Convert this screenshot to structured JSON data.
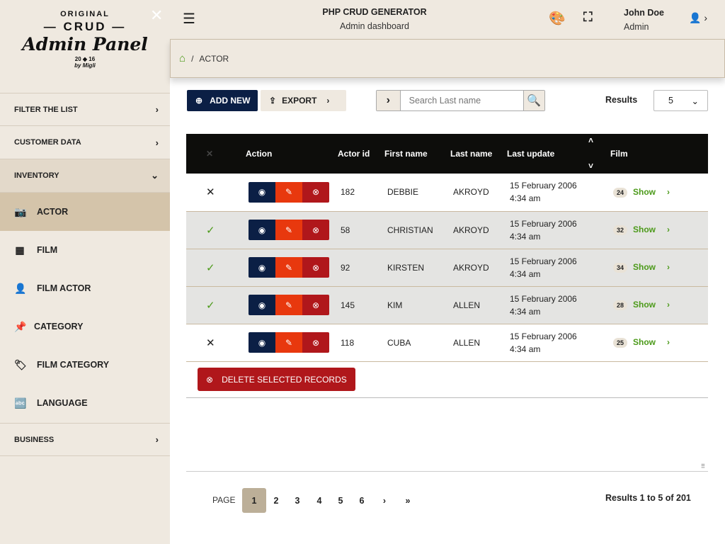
{
  "logo": {
    "line1": "ORIGINAL",
    "line2": "— CRUD —",
    "line3": "Admin Panel",
    "line4": "20 ◆ 16",
    "line5": "by Migli"
  },
  "header": {
    "title": "PHP CRUD GENERATOR",
    "subtitle": "Admin dashboard",
    "user_name": "John Doe",
    "user_role": "Admin"
  },
  "sidebar": {
    "sections": [
      {
        "label": "FILTER THE LIST"
      },
      {
        "label": "CUSTOMER DATA"
      },
      {
        "label": "INVENTORY"
      },
      {
        "label": "BUSINESS"
      }
    ],
    "items": [
      {
        "label": "ACTOR",
        "icon": "camera-icon"
      },
      {
        "label": "FILM",
        "icon": "film-icon"
      },
      {
        "label": "FILM ACTOR",
        "icon": "user-tag-icon"
      },
      {
        "label": "CATEGORY",
        "icon": "pin-icon"
      },
      {
        "label": "FILM CATEGORY",
        "icon": "tags-icon"
      },
      {
        "label": "LANGUAGE",
        "icon": "language-icon"
      }
    ]
  },
  "breadcrumb": {
    "sep": "/",
    "current": "ACTOR"
  },
  "toolbar": {
    "add_new": "ADD NEW",
    "export": "EXPORT",
    "search_placeholder": "Search Last name",
    "results_label": "Results",
    "results_value": "5"
  },
  "table": {
    "headers": [
      "Action",
      "Actor id",
      "First name",
      "Last name",
      "Last update",
      "Film"
    ],
    "rows": [
      {
        "selected": false,
        "id": "182",
        "first": "DEBBIE",
        "last": "AKROYD",
        "date": "15 February 2006",
        "time": "4:34 am",
        "films": "24",
        "show": "Show"
      },
      {
        "selected": true,
        "id": "58",
        "first": "CHRISTIAN",
        "last": "AKROYD",
        "date": "15 February 2006",
        "time": "4:34 am",
        "films": "32",
        "show": "Show"
      },
      {
        "selected": true,
        "id": "92",
        "first": "KIRSTEN",
        "last": "AKROYD",
        "date": "15 February 2006",
        "time": "4:34 am",
        "films": "34",
        "show": "Show"
      },
      {
        "selected": true,
        "id": "145",
        "first": "KIM",
        "last": "ALLEN",
        "date": "15 February 2006",
        "time": "4:34 am",
        "films": "28",
        "show": "Show"
      },
      {
        "selected": false,
        "id": "118",
        "first": "CUBA",
        "last": "ALLEN",
        "date": "15 February 2006",
        "time": "4:34 am",
        "films": "25",
        "show": "Show"
      }
    ]
  },
  "delete_selected": "DELETE SELECTED RECORDS",
  "pagination": {
    "label": "PAGE",
    "pages": [
      "1",
      "2",
      "3",
      "4",
      "5",
      "6"
    ],
    "current": "1",
    "summary": "Results 1 to 5 of 201"
  },
  "colors": {
    "navy": "#0b1f45",
    "orange": "#e8380e",
    "red": "#b0171b",
    "green": "#4c9a1a",
    "active": "#d4c4aa"
  }
}
